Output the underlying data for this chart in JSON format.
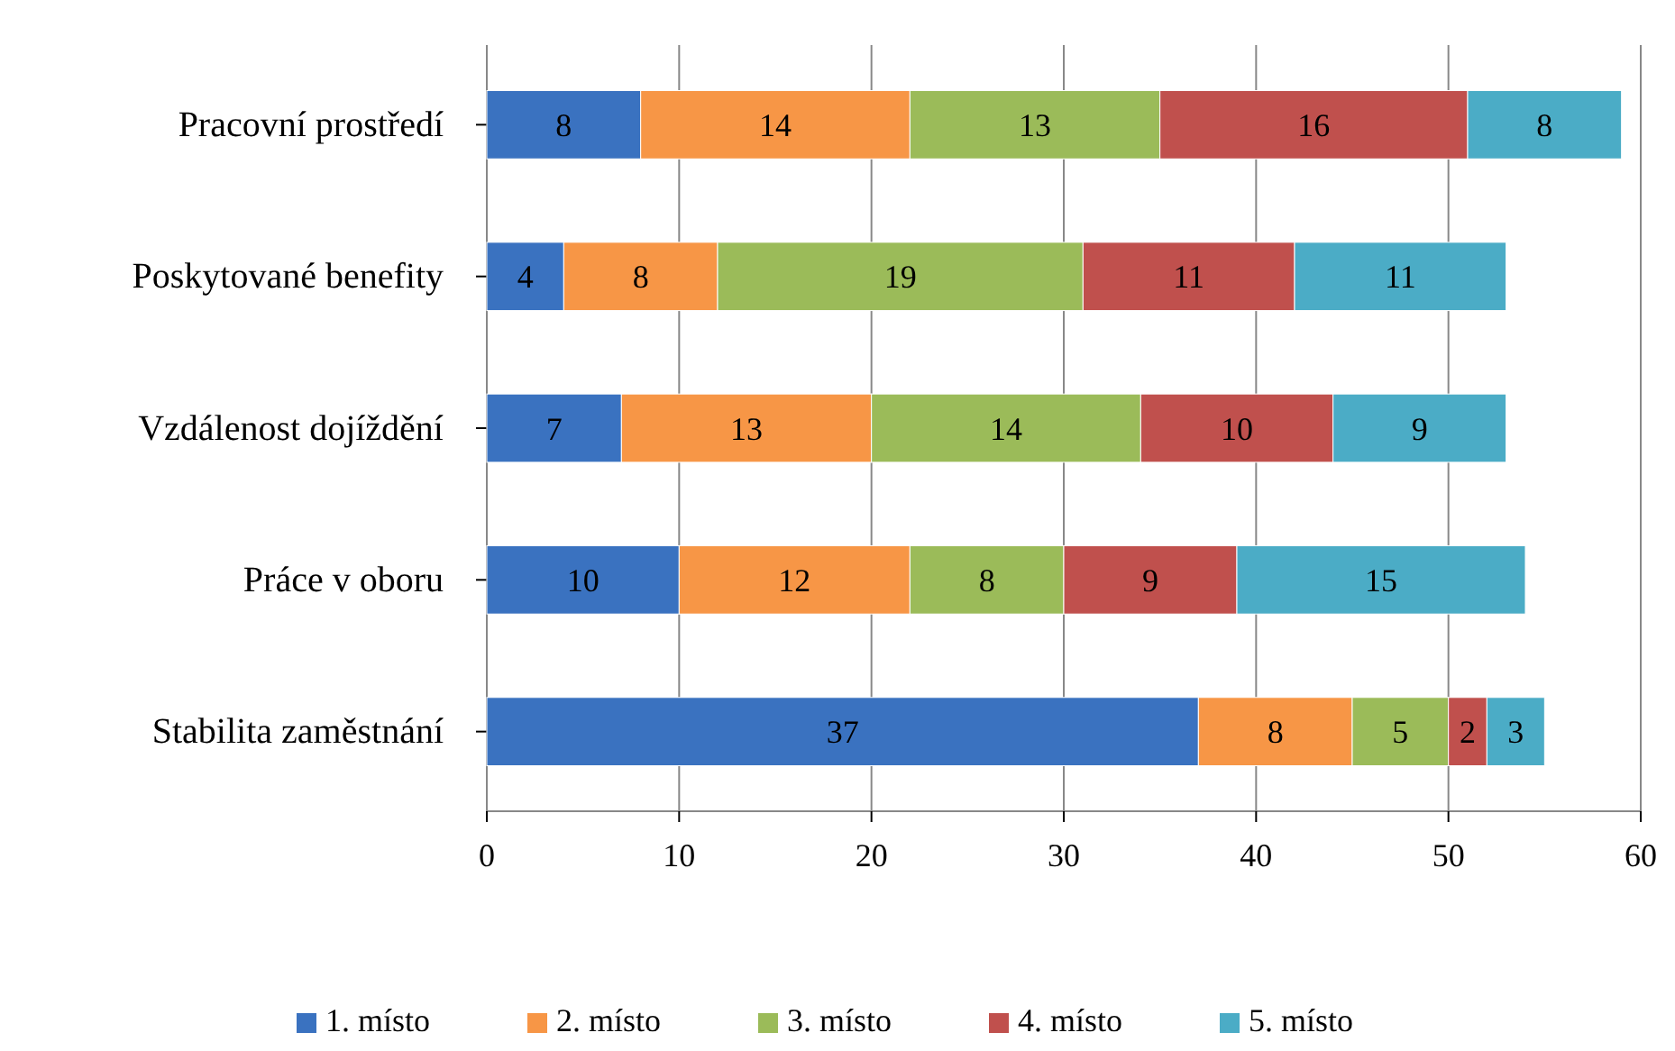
{
  "chart_data": {
    "type": "bar",
    "orientation": "horizontal",
    "stacked": true,
    "data_labels": true,
    "grid": "x",
    "legend": "bottom",
    "categories": [
      "Pracovní prostředí",
      "Poskytované benefity",
      "Vzdálenost dojíždění",
      "Práce v oboru",
      "Stabilita zaměstnání"
    ],
    "xlim": [
      0,
      60
    ],
    "xticks": [
      0,
      10,
      20,
      30,
      40,
      50,
      60
    ],
    "series": [
      {
        "name": "1. místo",
        "color": "#3a72c0",
        "values": [
          8,
          4,
          7,
          10,
          37
        ]
      },
      {
        "name": "2. místo",
        "color": "#f79646",
        "values": [
          14,
          8,
          13,
          12,
          8
        ]
      },
      {
        "name": "3. místo",
        "color": "#9bbb59",
        "values": [
          13,
          19,
          14,
          8,
          5
        ]
      },
      {
        "name": "4. místo",
        "color": "#c0504d",
        "values": [
          16,
          11,
          10,
          9,
          2
        ]
      },
      {
        "name": "5. místo",
        "color": "#4bacc6",
        "values": [
          8,
          11,
          9,
          15,
          3
        ]
      }
    ]
  }
}
